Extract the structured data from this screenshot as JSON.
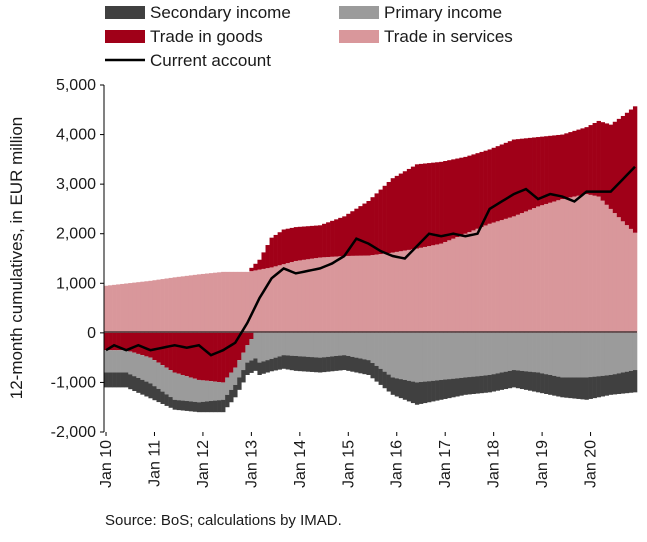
{
  "colors": {
    "secondary_income": "#404040",
    "primary_income": "#9b9b9b",
    "trade_in_goods": "#a00018",
    "trade_in_services": "#d9979b",
    "current_account": "#000000"
  },
  "source": "Source: BoS; calculations by IMAD.",
  "chart_data": {
    "type": "bar",
    "stacked": true,
    "frequency": "monthly",
    "x_start": "2010-01",
    "x_end": "2020-12",
    "ylabel": "12-month cumulatives, in EUR million",
    "ylim": [
      -2000,
      5000
    ],
    "yticks": [
      "-2,000",
      "-1,000",
      "0",
      "1,000",
      "2,000",
      "3,000",
      "4,000",
      "5,000"
    ],
    "ytick_values": [
      -2000,
      -1000,
      0,
      1000,
      2000,
      3000,
      4000,
      5000
    ],
    "xtick_labels": [
      "Jan 10",
      "Jan 11",
      "Jan 12",
      "Jan 13",
      "Jan 14",
      "Jan 15",
      "Jan 16",
      "Jan 17",
      "Jan 18",
      "Jan 19",
      "Jan 20"
    ],
    "grid": false,
    "legend_position": "top",
    "legend": [
      {
        "key": "secondary_income",
        "label": "Secondary income",
        "kind": "box"
      },
      {
        "key": "primary_income",
        "label": "Primary income",
        "kind": "box"
      },
      {
        "key": "trade_in_goods",
        "label": "Trade in goods",
        "kind": "box"
      },
      {
        "key": "trade_in_services",
        "label": "Trade in services",
        "kind": "box"
      },
      {
        "key": "current_account",
        "label": "Current account",
        "kind": "line"
      }
    ],
    "series_anchor_points": {
      "trade_in_services": [
        [
          "2010-01",
          950
        ],
        [
          "2010-12",
          1050
        ],
        [
          "2011-06",
          1120
        ],
        [
          "2011-12",
          1180
        ],
        [
          "2012-06",
          1230
        ],
        [
          "2012-12",
          1230
        ],
        [
          "2013-06",
          1320
        ],
        [
          "2013-12",
          1450
        ],
        [
          "2014-06",
          1520
        ],
        [
          "2014-12",
          1550
        ],
        [
          "2015-06",
          1560
        ],
        [
          "2015-12",
          1620
        ],
        [
          "2016-06",
          1700
        ],
        [
          "2016-12",
          1800
        ],
        [
          "2017-06",
          2000
        ],
        [
          "2017-12",
          2200
        ],
        [
          "2018-06",
          2350
        ],
        [
          "2018-12",
          2550
        ],
        [
          "2019-06",
          2700
        ],
        [
          "2019-12",
          2800
        ],
        [
          "2020-03",
          2750
        ],
        [
          "2020-06",
          2500
        ],
        [
          "2020-09",
          2250
        ],
        [
          "2020-12",
          2020
        ]
      ],
      "trade_in_goods": [
        [
          "2010-01",
          0
        ],
        [
          "2012-06",
          0
        ],
        [
          "2012-12",
          0
        ],
        [
          "2013-03",
          200
        ],
        [
          "2013-06",
          600
        ],
        [
          "2013-09",
          700
        ],
        [
          "2014-06",
          650
        ],
        [
          "2014-12",
          800
        ],
        [
          "2015-06",
          1100
        ],
        [
          "2015-12",
          1500
        ],
        [
          "2016-06",
          1700
        ],
        [
          "2016-12",
          1650
        ],
        [
          "2017-06",
          1550
        ],
        [
          "2017-12",
          1500
        ],
        [
          "2018-06",
          1550
        ],
        [
          "2018-12",
          1400
        ],
        [
          "2019-06",
          1300
        ],
        [
          "2019-12",
          1350
        ],
        [
          "2020-06",
          1700
        ],
        [
          "2020-12",
          2550
        ]
      ],
      "trade_in_goods_negative": [
        [
          "2010-01",
          -350
        ],
        [
          "2010-06",
          -350
        ],
        [
          "2010-12",
          -500
        ],
        [
          "2011-06",
          -800
        ],
        [
          "2011-12",
          -950
        ],
        [
          "2012-06",
          -1000
        ],
        [
          "2012-09",
          -700
        ],
        [
          "2012-12",
          -250
        ],
        [
          "2013-02",
          0
        ],
        [
          "2020-12",
          0
        ]
      ],
      "primary_income": [
        [
          "2010-01",
          -450
        ],
        [
          "2010-06",
          -450
        ],
        [
          "2010-12",
          -520
        ],
        [
          "2011-06",
          -550
        ],
        [
          "2011-12",
          -450
        ],
        [
          "2012-06",
          -350
        ],
        [
          "2012-09",
          -350
        ],
        [
          "2012-12",
          -350
        ],
        [
          "2013-03",
          -600
        ],
        [
          "2013-09",
          -450
        ],
        [
          "2014-06",
          -500
        ],
        [
          "2014-12",
          -450
        ],
        [
          "2015-06",
          -550
        ],
        [
          "2015-12",
          -900
        ],
        [
          "2016-06",
          -1000
        ],
        [
          "2016-12",
          -950
        ],
        [
          "2017-06",
          -900
        ],
        [
          "2017-12",
          -850
        ],
        [
          "2018-06",
          -750
        ],
        [
          "2018-12",
          -800
        ],
        [
          "2019-06",
          -900
        ],
        [
          "2019-12",
          -900
        ],
        [
          "2020-06",
          -850
        ],
        [
          "2020-12",
          -750
        ]
      ],
      "secondary_income": [
        [
          "2010-01",
          -300
        ],
        [
          "2010-12",
          -300
        ],
        [
          "2011-06",
          -200
        ],
        [
          "2011-12",
          -200
        ],
        [
          "2012-06",
          -250
        ],
        [
          "2012-12",
          -250
        ],
        [
          "2013-06",
          -250
        ],
        [
          "2013-12",
          -300
        ],
        [
          "2014-06",
          -300
        ],
        [
          "2014-12",
          -300
        ],
        [
          "2015-06",
          -300
        ],
        [
          "2015-12",
          -350
        ],
        [
          "2016-06",
          -450
        ],
        [
          "2016-12",
          -400
        ],
        [
          "2017-06",
          -350
        ],
        [
          "2017-12",
          -350
        ],
        [
          "2018-06",
          -350
        ],
        [
          "2018-12",
          -400
        ],
        [
          "2019-06",
          -400
        ],
        [
          "2019-12",
          -450
        ],
        [
          "2020-06",
          -400
        ],
        [
          "2020-12",
          -450
        ]
      ],
      "current_account": [
        [
          "2010-01",
          -350
        ],
        [
          "2010-03",
          -250
        ],
        [
          "2010-06",
          -350
        ],
        [
          "2010-09",
          -250
        ],
        [
          "2010-12",
          -350
        ],
        [
          "2011-03",
          -300
        ],
        [
          "2011-06",
          -250
        ],
        [
          "2011-09",
          -300
        ],
        [
          "2011-12",
          -250
        ],
        [
          "2012-03",
          -450
        ],
        [
          "2012-06",
          -350
        ],
        [
          "2012-09",
          -200
        ],
        [
          "2012-12",
          200
        ],
        [
          "2013-03",
          700
        ],
        [
          "2013-06",
          1100
        ],
        [
          "2013-09",
          1300
        ],
        [
          "2013-12",
          1200
        ],
        [
          "2014-03",
          1250
        ],
        [
          "2014-06",
          1300
        ],
        [
          "2014-09",
          1400
        ],
        [
          "2014-12",
          1550
        ],
        [
          "2015-03",
          1900
        ],
        [
          "2015-06",
          1800
        ],
        [
          "2015-09",
          1650
        ],
        [
          "2015-12",
          1550
        ],
        [
          "2016-03",
          1500
        ],
        [
          "2016-06",
          1750
        ],
        [
          "2016-09",
          2000
        ],
        [
          "2016-12",
          1950
        ],
        [
          "2017-03",
          2000
        ],
        [
          "2017-06",
          1950
        ],
        [
          "2017-09",
          2000
        ],
        [
          "2017-12",
          2500
        ],
        [
          "2018-03",
          2650
        ],
        [
          "2018-06",
          2800
        ],
        [
          "2018-09",
          2900
        ],
        [
          "2018-12",
          2700
        ],
        [
          "2019-03",
          2800
        ],
        [
          "2019-06",
          2750
        ],
        [
          "2019-09",
          2650
        ],
        [
          "2019-12",
          2850
        ],
        [
          "2020-03",
          2850
        ],
        [
          "2020-06",
          2850
        ],
        [
          "2020-09",
          3100
        ],
        [
          "2020-12",
          3350
        ]
      ]
    }
  }
}
